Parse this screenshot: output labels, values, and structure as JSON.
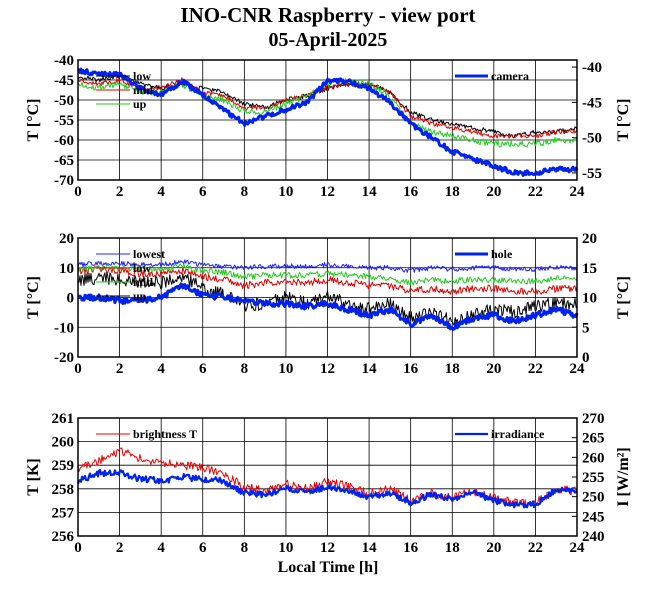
{
  "chart_data": {
    "title": "INO-CNR Raspberry - view port",
    "subtitle": "05-April-2025",
    "xlabel": "Local Time [h]",
    "panels": [
      {
        "type": "line",
        "xlim": [
          0,
          24
        ],
        "xticks": [
          "0",
          "2",
          "4",
          "6",
          "8",
          "10",
          "12",
          "14",
          "16",
          "18",
          "20",
          "22",
          "24"
        ],
        "ylim_left": [
          -70,
          -40
        ],
        "yticks_left": [
          "-70",
          "-65",
          "-60",
          "-55",
          "-50",
          "-45",
          "-40"
        ],
        "ylabel_left": "T [°C]",
        "ylim_right": [
          -56,
          -39
        ],
        "yticks_right": [
          "-55",
          "-50",
          "-45",
          "-40"
        ],
        "ylabel_right": "T [°C]",
        "grid": true,
        "legend_left": [
          "low",
          "mid",
          "up"
        ],
        "legend_right": [
          "camera"
        ],
        "series": [
          {
            "name": "low",
            "color": "#000000",
            "axis": "left",
            "noise": 0.6,
            "x": [
              0,
              1,
              2,
              3,
              4,
              5,
              6,
              7,
              8,
              9,
              10,
              11,
              12,
              13,
              14,
              15,
              16,
              17,
              18,
              19,
              20,
              21,
              22,
              23,
              24
            ],
            "y": [
              -44,
              -45,
              -44,
              -46,
              -47,
              -46,
              -47,
              -48,
              -51,
              -52,
              -50,
              -49,
              -47,
              -46,
              -46,
              -48,
              -53,
              -55,
              -56,
              -57,
              -58,
              -59,
              -58,
              -58,
              -57
            ]
          },
          {
            "name": "mid",
            "color": "#e00000",
            "axis": "left",
            "noise": 0.6,
            "x": [
              0,
              1,
              2,
              3,
              4,
              5,
              6,
              7,
              8,
              9,
              10,
              11,
              12,
              13,
              14,
              15,
              16,
              17,
              18,
              19,
              20,
              21,
              22,
              23,
              24
            ],
            "y": [
              -45,
              -46,
              -45,
              -47,
              -47,
              -45,
              -48,
              -49,
              -52,
              -52,
              -50,
              -49,
              -47,
              -46,
              -46,
              -48,
              -54,
              -56,
              -57,
              -58,
              -59,
              -59,
              -59,
              -58,
              -58
            ]
          },
          {
            "name": "up",
            "color": "#22cc22",
            "axis": "left",
            "noise": 0.8,
            "x": [
              0,
              1,
              2,
              3,
              4,
              5,
              6,
              7,
              8,
              9,
              10,
              11,
              12,
              13,
              14,
              15,
              16,
              17,
              18,
              19,
              20,
              21,
              22,
              23,
              24
            ],
            "y": [
              -46,
              -47,
              -46,
              -48,
              -48,
              -46,
              -49,
              -50,
              -53,
              -53,
              -51,
              -49,
              -46,
              -45,
              -46,
              -49,
              -56,
              -58,
              -59,
              -60,
              -61,
              -61,
              -61,
              -60,
              -60
            ]
          },
          {
            "name": "camera",
            "color": "#0022ee",
            "axis": "right",
            "noise": 0.35,
            "width": 3,
            "x": [
              0,
              1,
              2,
              3,
              4,
              5,
              6,
              7,
              8,
              9,
              10,
              11,
              12,
              13,
              14,
              15,
              16,
              17,
              18,
              19,
              20,
              21,
              22,
              23,
              24
            ],
            "y": [
              -40.5,
              -41,
              -41,
              -43,
              -44,
              -42,
              -44,
              -46,
              -48,
              -47,
              -46,
              -45,
              -42,
              -42,
              -43,
              -45,
              -48,
              -50,
              -52,
              -53,
              -54,
              -55,
              -55,
              -54.5,
              -54.5
            ]
          }
        ]
      },
      {
        "type": "line",
        "xlim": [
          0,
          24
        ],
        "xticks": [
          "0",
          "2",
          "4",
          "6",
          "8",
          "10",
          "12",
          "14",
          "16",
          "18",
          "20",
          "22",
          "24"
        ],
        "ylim_left": [
          -20,
          20
        ],
        "yticks_left": [
          "-20",
          "-10",
          "0",
          "10",
          "20"
        ],
        "ylabel_left": "T [°C]",
        "ylim_right": [
          0,
          20
        ],
        "yticks_right": [
          "0",
          "5",
          "10",
          "15",
          "20"
        ],
        "ylabel_right": "T [°C]",
        "grid": true,
        "legend_left": [
          "lowest",
          "low",
          "mid",
          "up"
        ],
        "legend_right": [
          "hole"
        ],
        "series": [
          {
            "name": "lowest",
            "color": "#2020ff",
            "axis": "left",
            "noise": 0.8,
            "x": [
              0,
              1,
              2,
              3,
              4,
              5,
              6,
              7,
              8,
              9,
              10,
              11,
              12,
              13,
              14,
              15,
              16,
              17,
              18,
              19,
              20,
              21,
              22,
              23,
              24
            ],
            "y": [
              11,
              11.5,
              11.5,
              11,
              11,
              12,
              11,
              10.5,
              10,
              10.5,
              10.5,
              10.5,
              11,
              10.5,
              10,
              10,
              9,
              10,
              9.5,
              10,
              10,
              9.5,
              9.5,
              10,
              10
            ]
          },
          {
            "name": "low",
            "color": "#e00000",
            "axis": "left",
            "noise": 1.2,
            "x": [
              0,
              1,
              2,
              3,
              4,
              5,
              6,
              7,
              8,
              9,
              10,
              11,
              12,
              13,
              14,
              15,
              16,
              17,
              18,
              19,
              20,
              21,
              22,
              23,
              24
            ],
            "y": [
              9,
              9.5,
              9,
              8,
              8,
              9,
              7,
              6,
              4,
              5,
              5,
              5,
              6,
              5,
              4,
              4,
              2,
              3,
              2,
              3,
              3,
              2,
              2,
              3,
              3
            ]
          },
          {
            "name": "mid",
            "color": "#22cc22",
            "axis": "left",
            "noise": 1.0,
            "x": [
              0,
              1,
              2,
              3,
              4,
              5,
              6,
              7,
              8,
              9,
              10,
              11,
              12,
              13,
              14,
              15,
              16,
              17,
              18,
              19,
              20,
              21,
              22,
              23,
              24
            ],
            "y": [
              9.5,
              10,
              10,
              9.5,
              9.5,
              10.5,
              9,
              8.5,
              7,
              7.5,
              7.5,
              7.5,
              8,
              7.5,
              7,
              6.5,
              5,
              6,
              5.5,
              6,
              6,
              5.5,
              5.5,
              6.5,
              6.5
            ]
          },
          {
            "name": "up",
            "color": "#000000",
            "axis": "left",
            "noise": 2.2,
            "x": [
              0,
              1,
              2,
              3,
              4,
              5,
              6,
              7,
              8,
              9,
              10,
              11,
              12,
              13,
              14,
              15,
              16,
              17,
              18,
              19,
              20,
              21,
              22,
              23,
              24
            ],
            "y": [
              6,
              6.5,
              6,
              5,
              5,
              7,
              3,
              1,
              -3,
              -2,
              0,
              -2,
              0,
              -2,
              -4,
              -2,
              -7,
              -5,
              -8,
              -6,
              -4,
              -5,
              -3,
              -2,
              -2
            ]
          },
          {
            "name": "hole",
            "color": "#0022ee",
            "axis": "right",
            "noise": 0.5,
            "width": 3,
            "x": [
              0,
              1,
              2,
              3,
              4,
              5,
              6,
              7,
              8,
              9,
              10,
              11,
              12,
              13,
              14,
              15,
              16,
              17,
              18,
              19,
              20,
              21,
              22,
              23,
              24
            ],
            "y": [
              10,
              10,
              9.5,
              9.5,
              10,
              12,
              10.5,
              10,
              9.5,
              9,
              9,
              8.5,
              9,
              8,
              7,
              8,
              5.5,
              7,
              5,
              6.5,
              7,
              6,
              7,
              8,
              7
            ]
          }
        ]
      },
      {
        "type": "line",
        "xlim": [
          0,
          24
        ],
        "xticks": [
          "0",
          "2",
          "4",
          "6",
          "8",
          "10",
          "12",
          "14",
          "16",
          "18",
          "20",
          "22",
          "24"
        ],
        "ylim_left": [
          256,
          261
        ],
        "yticks_left": [
          "256",
          "257",
          "258",
          "259",
          "260",
          "261"
        ],
        "ylabel_left": "T [K]",
        "ylim_right": [
          240,
          270
        ],
        "yticks_right": [
          "240",
          "245",
          "250",
          "255",
          "260",
          "265",
          "270"
        ],
        "ylabel_right": "I [W/m²]",
        "grid": true,
        "legend_left": [
          "brightness T"
        ],
        "legend_right": [
          "irradiance"
        ],
        "series": [
          {
            "name": "brightness T",
            "color": "#ee0000",
            "axis": "left",
            "noise": 0.18,
            "x": [
              0,
              1,
              2,
              3,
              4,
              5,
              6,
              7,
              8,
              9,
              10,
              11,
              12,
              13,
              14,
              15,
              16,
              17,
              18,
              19,
              20,
              21,
              22,
              23,
              24
            ],
            "y": [
              258.8,
              259.2,
              259.6,
              259.3,
              259.1,
              259.0,
              258.9,
              258.6,
              258.1,
              257.9,
              258.2,
              258.0,
              258.3,
              258.1,
              257.8,
              258.0,
              257.5,
              257.8,
              257.6,
              257.9,
              257.6,
              257.4,
              257.4,
              258.0,
              257.9
            ]
          },
          {
            "name": "irradiance",
            "color": "#0022ee",
            "axis": "right",
            "noise": 0.8,
            "width": 2.2,
            "x": [
              0,
              1,
              2,
              3,
              4,
              5,
              6,
              7,
              8,
              9,
              10,
              11,
              12,
              13,
              14,
              15,
              16,
              17,
              18,
              19,
              20,
              21,
              22,
              23,
              24
            ],
            "y": [
              254,
              256,
              256,
              254.5,
              254,
              255,
              254.5,
              254,
              251,
              250.5,
              252,
              251,
              252.5,
              251.5,
              250,
              251,
              248.5,
              250.5,
              249.5,
              251,
              249,
              248,
              248,
              252,
              251
            ]
          }
        ]
      }
    ]
  }
}
